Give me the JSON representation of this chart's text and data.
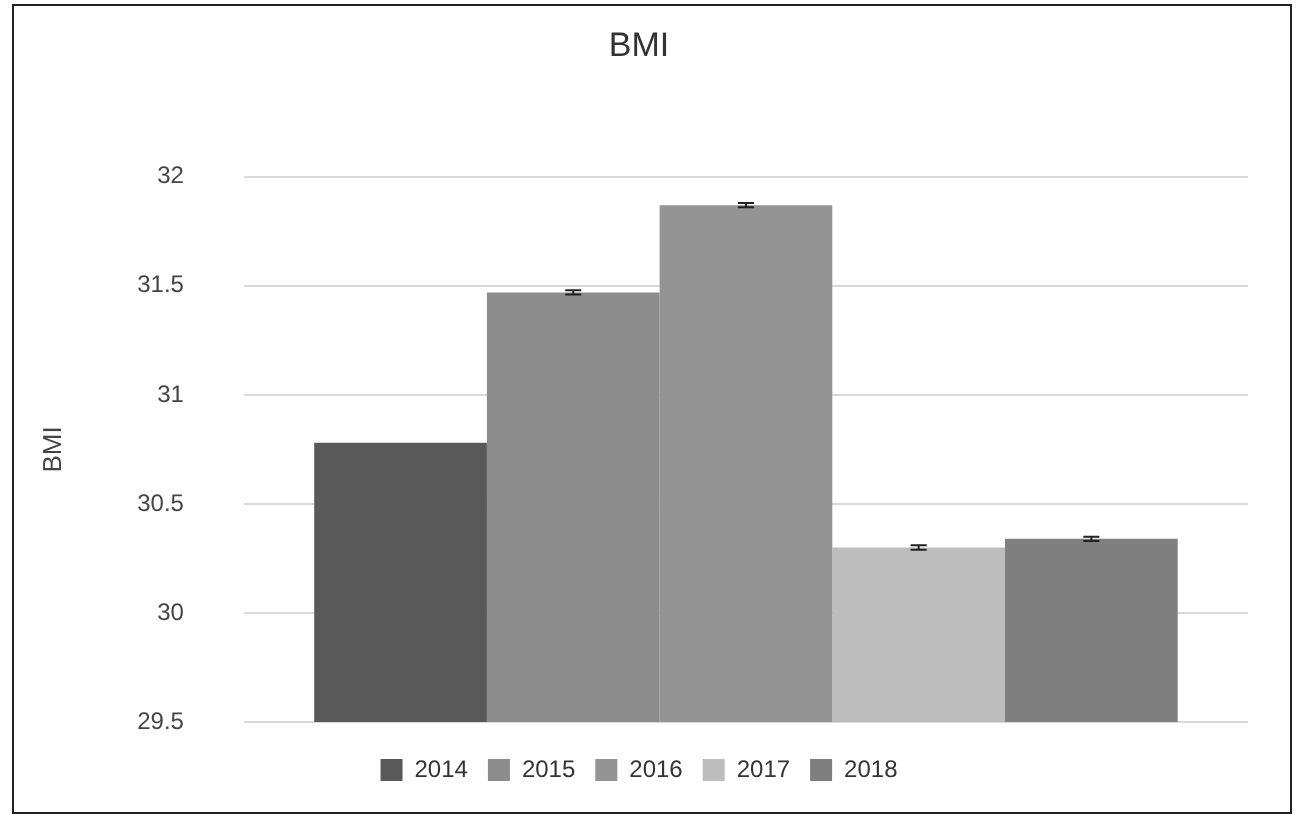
{
  "chart_data": {
    "type": "bar",
    "title": "BMI",
    "ylabel": "BMI",
    "categories": [
      null
    ],
    "series": [
      {
        "name": "2014",
        "color": "#595959",
        "values": [
          30.78
        ]
      },
      {
        "name": "2015",
        "color": "#8c8c8c",
        "values": [
          31.47
        ],
        "errors": [
          0.01
        ]
      },
      {
        "name": "2016",
        "color": "#949494",
        "values": [
          31.87
        ],
        "errors": [
          0.01
        ]
      },
      {
        "name": "2017",
        "color": "#bdbdbd",
        "values": [
          30.3
        ],
        "errors": [
          0.01
        ]
      },
      {
        "name": "2018",
        "color": "#7f7f7f",
        "values": [
          30.34
        ],
        "errors": [
          0.01
        ]
      }
    ],
    "ylim": [
      29.5,
      32
    ],
    "yticks": [
      29.5,
      30,
      30.5,
      31,
      31.5,
      32
    ],
    "grid": "y",
    "legend": "bottom"
  }
}
